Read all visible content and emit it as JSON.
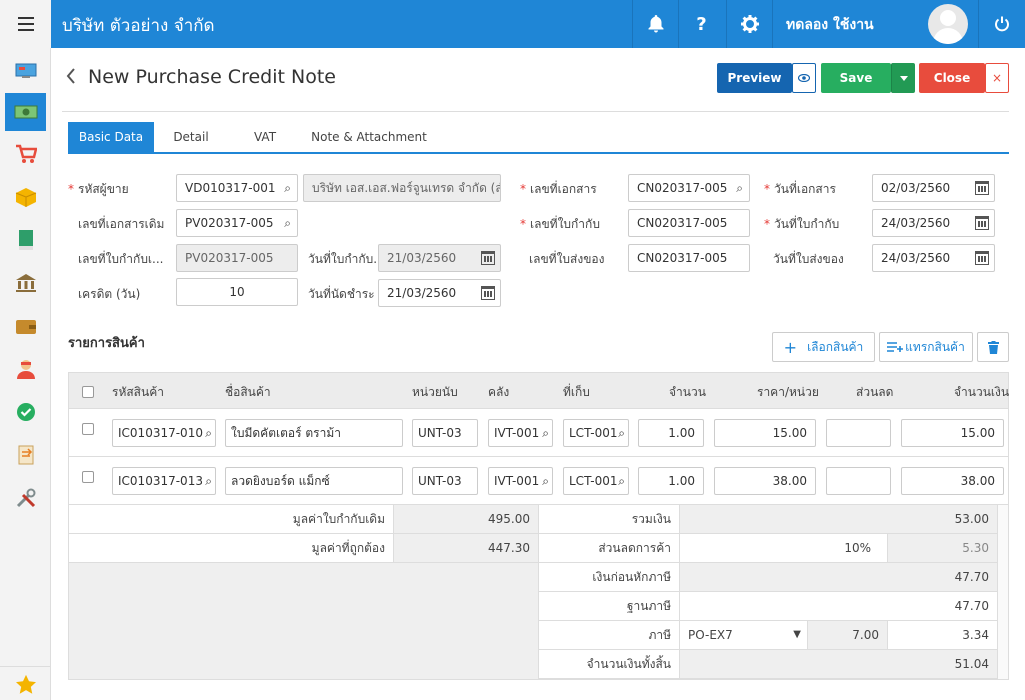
{
  "app": {
    "company": "บริษัท ตัวอย่าง จำกัด",
    "user": "ทดลอง ใช้งาน"
  },
  "header": {
    "title": "New Purchase Credit Note",
    "preview": "Preview",
    "save": "Save",
    "close": "Close"
  },
  "tabs": [
    "Basic Data",
    "Detail",
    "VAT",
    "Note & Attachment"
  ],
  "form": {
    "vendor_code_label": "รหัสผู้ขาย",
    "vendor_code": "VD010317-001",
    "vendor_name": "บริษัท เอส.เอส.ฟอร์จูนเทรด จำกัด (สำนักงานใหญ่)",
    "orig_doc_label": "เลขที่เอกสารเดิม",
    "orig_doc": "PV020317-005",
    "orig_inv_label": "เลขที่ใบกำกับเ...",
    "orig_inv": "PV020317-005",
    "orig_inv_date_label": "วันที่ใบกำกับ...",
    "orig_inv_date": "21/03/2560",
    "credit_label": "เครดิต (วัน)",
    "credit": "10",
    "due_label": "วันที่นัดชำระ",
    "due": "21/03/2560",
    "doc_no_label": "เลขที่เอกสาร",
    "doc_no": "CN020317-005",
    "inv_no_label": "เลขที่ใบกำกับ",
    "inv_no": "CN020317-005",
    "delivery_no_label": "เลขที่ใบส่งของ",
    "delivery_no": "CN020317-005",
    "doc_date_label": "วันที่เอกสาร",
    "doc_date": "02/03/2560",
    "inv_date_label": "วันที่ใบกำกับ",
    "inv_date": "24/03/2560",
    "delivery_date_label": "วันที่ใบส่งของ",
    "delivery_date": "24/03/2560"
  },
  "items_section": {
    "title": "รายการสินค้า",
    "select_btn": "เลือกสินค้า",
    "insert_btn": "แทรกสินค้า"
  },
  "table": {
    "headers": [
      "รหัสสินค้า",
      "ชื่อสินค้า",
      "หน่วยนับ",
      "คลัง",
      "ที่เก็บ",
      "จำนวน",
      "ราคา/หน่วย",
      "ส่วนลด",
      "จำนวนเงิน"
    ],
    "rows": [
      {
        "code": "IC010317-010",
        "name": "ใบมีดคัตเตอร์ ตราม้า",
        "unit": "UNT-03",
        "wh": "IVT-001",
        "loc": "LCT-001",
        "qty": "1.00",
        "price": "15.00",
        "disc": "",
        "amount": "15.00"
      },
      {
        "code": "IC010317-013",
        "name": "ลวดยิงบอร์ด แม็กซ์",
        "unit": "UNT-03",
        "wh": "IVT-001",
        "loc": "LCT-001",
        "qty": "1.00",
        "price": "38.00",
        "disc": "",
        "amount": "38.00"
      }
    ]
  },
  "summary": {
    "orig_value_label": "มูลค่าใบกำกับเดิม",
    "orig_value": "495.00",
    "correct_value_label": "มูลค่าที่ถูกต้อง",
    "correct_value": "447.30",
    "total_label": "รวมเงิน",
    "total": "53.00",
    "trade_disc_label": "ส่วนลดการค้า",
    "trade_disc_pct": "10%",
    "trade_disc": "5.30",
    "before_tax_label": "เงินก่อนหักภาษี",
    "before_tax": "47.70",
    "tax_base_label": "ฐานภาษี",
    "tax_base": "47.70",
    "tax_label": "ภาษี",
    "tax_code": "PO-EX7",
    "tax_rate": "7.00",
    "tax": "3.34",
    "grand_label": "จำนวนเงินทั้งสิ้น",
    "grand": "51.04"
  },
  "colors": {
    "primary": "#1f86d6",
    "save": "#27ae60",
    "close": "#e84c3d",
    "preview": "#1565b0"
  }
}
